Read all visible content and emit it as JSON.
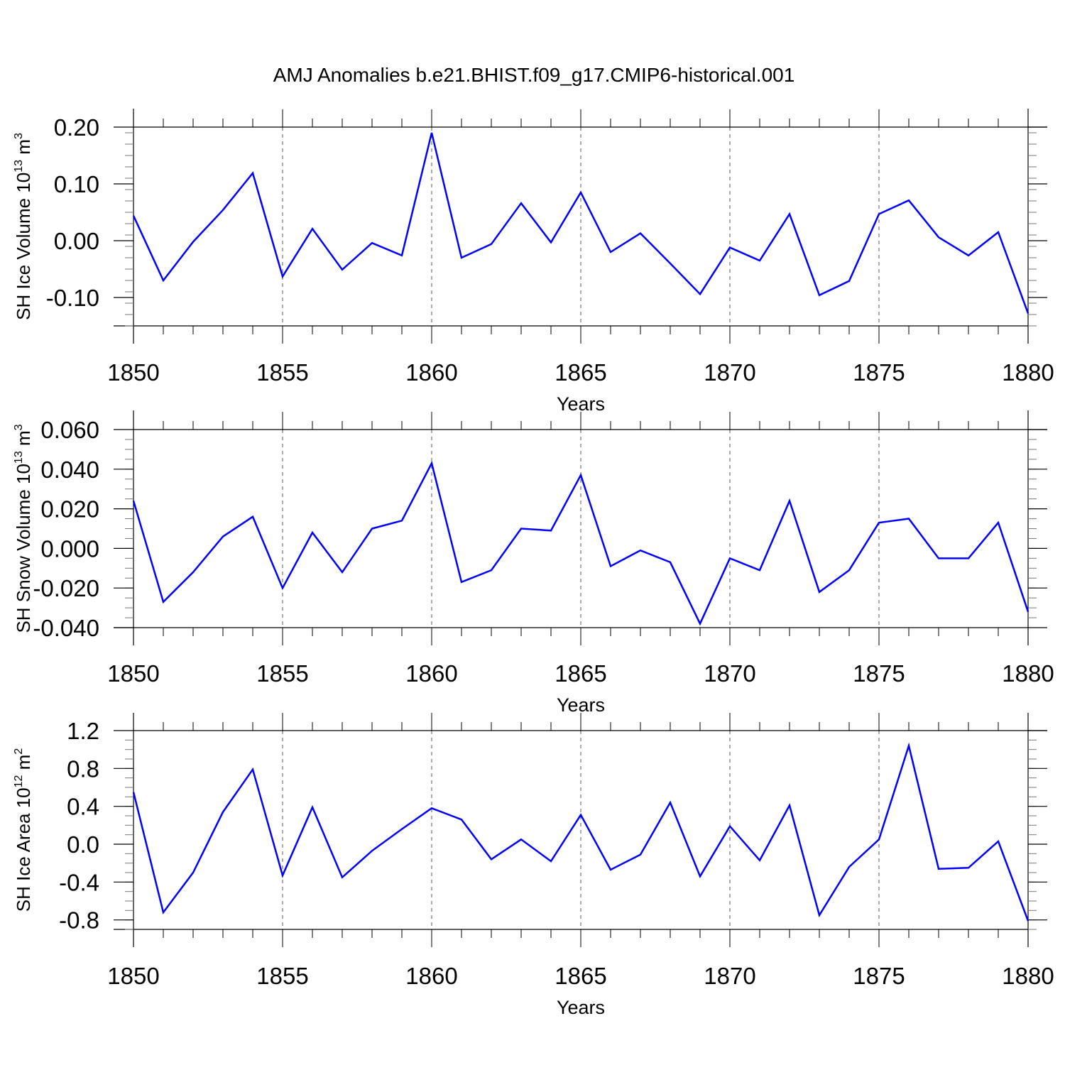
{
  "title": "AMJ Anomalies b.e21.BHIST.f09_g17.CMIP6-historical.001",
  "line_color": "#0000ff",
  "chart_data": [
    {
      "type": "line",
      "xlabel": "Years",
      "ylabel": {
        "prefix": "SH Ice Volume 10",
        "exp": "13",
        "mid": " m",
        "unit_exp": "3"
      },
      "x": [
        1850,
        1851,
        1852,
        1853,
        1854,
        1855,
        1856,
        1857,
        1858,
        1859,
        1860,
        1861,
        1862,
        1863,
        1864,
        1865,
        1866,
        1867,
        1868,
        1869,
        1870,
        1871,
        1872,
        1873,
        1874,
        1875,
        1876,
        1877,
        1878,
        1879,
        1880
      ],
      "values": [
        0.044,
        -0.07,
        -0.002,
        0.054,
        0.119,
        -0.063,
        0.021,
        -0.051,
        -0.004,
        -0.026,
        0.19,
        -0.03,
        -0.006,
        0.066,
        -0.003,
        0.085,
        -0.02,
        0.013,
        -0.04,
        -0.094,
        -0.012,
        -0.035,
        0.047,
        -0.096,
        -0.071,
        0.047,
        0.071,
        0.006,
        -0.026,
        0.015,
        -0.128
      ],
      "xlim": [
        1850,
        1880
      ],
      "ylim": [
        -0.15,
        0.2
      ],
      "xticks": [
        1850,
        1855,
        1860,
        1865,
        1870,
        1875,
        1880
      ],
      "yticks": [
        0.2,
        0.1,
        0.0,
        -0.1
      ],
      "ytick_labels": [
        "0.20",
        "0.10",
        "0.00",
        "-0.10"
      ],
      "y_minor_step": 0.02,
      "xtick_labels": [
        "1850",
        "1855",
        "1860",
        "1865",
        "1870",
        "1875",
        "1880"
      ],
      "grid": "vertical dashed"
    },
    {
      "type": "line",
      "xlabel": "Years",
      "ylabel": {
        "prefix": "SH Snow Volume 10",
        "exp": "13",
        "mid": " m",
        "unit_exp": "3"
      },
      "x": [
        1850,
        1851,
        1852,
        1853,
        1854,
        1855,
        1856,
        1857,
        1858,
        1859,
        1860,
        1861,
        1862,
        1863,
        1864,
        1865,
        1866,
        1867,
        1868,
        1869,
        1870,
        1871,
        1872,
        1873,
        1874,
        1875,
        1876,
        1877,
        1878,
        1879,
        1880
      ],
      "values": [
        0.024,
        -0.027,
        -0.012,
        0.006,
        0.016,
        -0.02,
        0.008,
        -0.012,
        0.01,
        0.014,
        0.043,
        -0.017,
        -0.011,
        0.01,
        0.009,
        0.037,
        -0.009,
        -0.001,
        -0.007,
        -0.038,
        -0.005,
        -0.011,
        0.024,
        -0.022,
        -0.011,
        0.013,
        0.015,
        -0.005,
        -0.005,
        0.013,
        -0.032
      ],
      "xlim": [
        1850,
        1880
      ],
      "ylim": [
        -0.04,
        0.06
      ],
      "xticks": [
        1850,
        1855,
        1860,
        1865,
        1870,
        1875,
        1880
      ],
      "yticks": [
        0.06,
        0.04,
        0.02,
        0.0,
        -0.02,
        -0.04
      ],
      "ytick_labels": [
        "0.060",
        "0.040",
        "0.020",
        "0.000",
        "-0.020",
        "-0.040"
      ],
      "y_minor_step": 0.005,
      "xtick_labels": [
        "1850",
        "1855",
        "1860",
        "1865",
        "1870",
        "1875",
        "1880"
      ],
      "grid": "vertical dashed"
    },
    {
      "type": "line",
      "xlabel": "Years",
      "ylabel": {
        "prefix": "SH Ice Area 10",
        "exp": "12",
        "mid": " m",
        "unit_exp": "2"
      },
      "x": [
        1850,
        1851,
        1852,
        1853,
        1854,
        1855,
        1856,
        1857,
        1858,
        1859,
        1860,
        1861,
        1862,
        1863,
        1864,
        1865,
        1866,
        1867,
        1868,
        1869,
        1870,
        1871,
        1872,
        1873,
        1874,
        1875,
        1876,
        1877,
        1878,
        1879,
        1880
      ],
      "values": [
        0.55,
        -0.72,
        -0.3,
        0.34,
        0.79,
        -0.33,
        0.39,
        -0.35,
        -0.07,
        0.16,
        0.38,
        0.26,
        -0.16,
        0.05,
        -0.18,
        0.31,
        -0.27,
        -0.11,
        0.44,
        -0.34,
        0.19,
        -0.17,
        0.41,
        -0.75,
        -0.24,
        0.05,
        1.04,
        -0.26,
        -0.25,
        0.03,
        -0.81
      ],
      "xlim": [
        1850,
        1880
      ],
      "ylim": [
        -0.9,
        1.2
      ],
      "xticks": [
        1850,
        1855,
        1860,
        1865,
        1870,
        1875,
        1880
      ],
      "yticks": [
        1.2,
        0.8,
        0.4,
        0.0,
        -0.4,
        -0.8
      ],
      "ytick_labels": [
        "1.2",
        "0.8",
        "0.4",
        "0.0",
        "-0.4",
        "-0.8"
      ],
      "y_minor_step": 0.1,
      "xtick_labels": [
        "1850",
        "1855",
        "1860",
        "1865",
        "1870",
        "1875",
        "1880"
      ],
      "grid": "vertical dashed"
    }
  ]
}
